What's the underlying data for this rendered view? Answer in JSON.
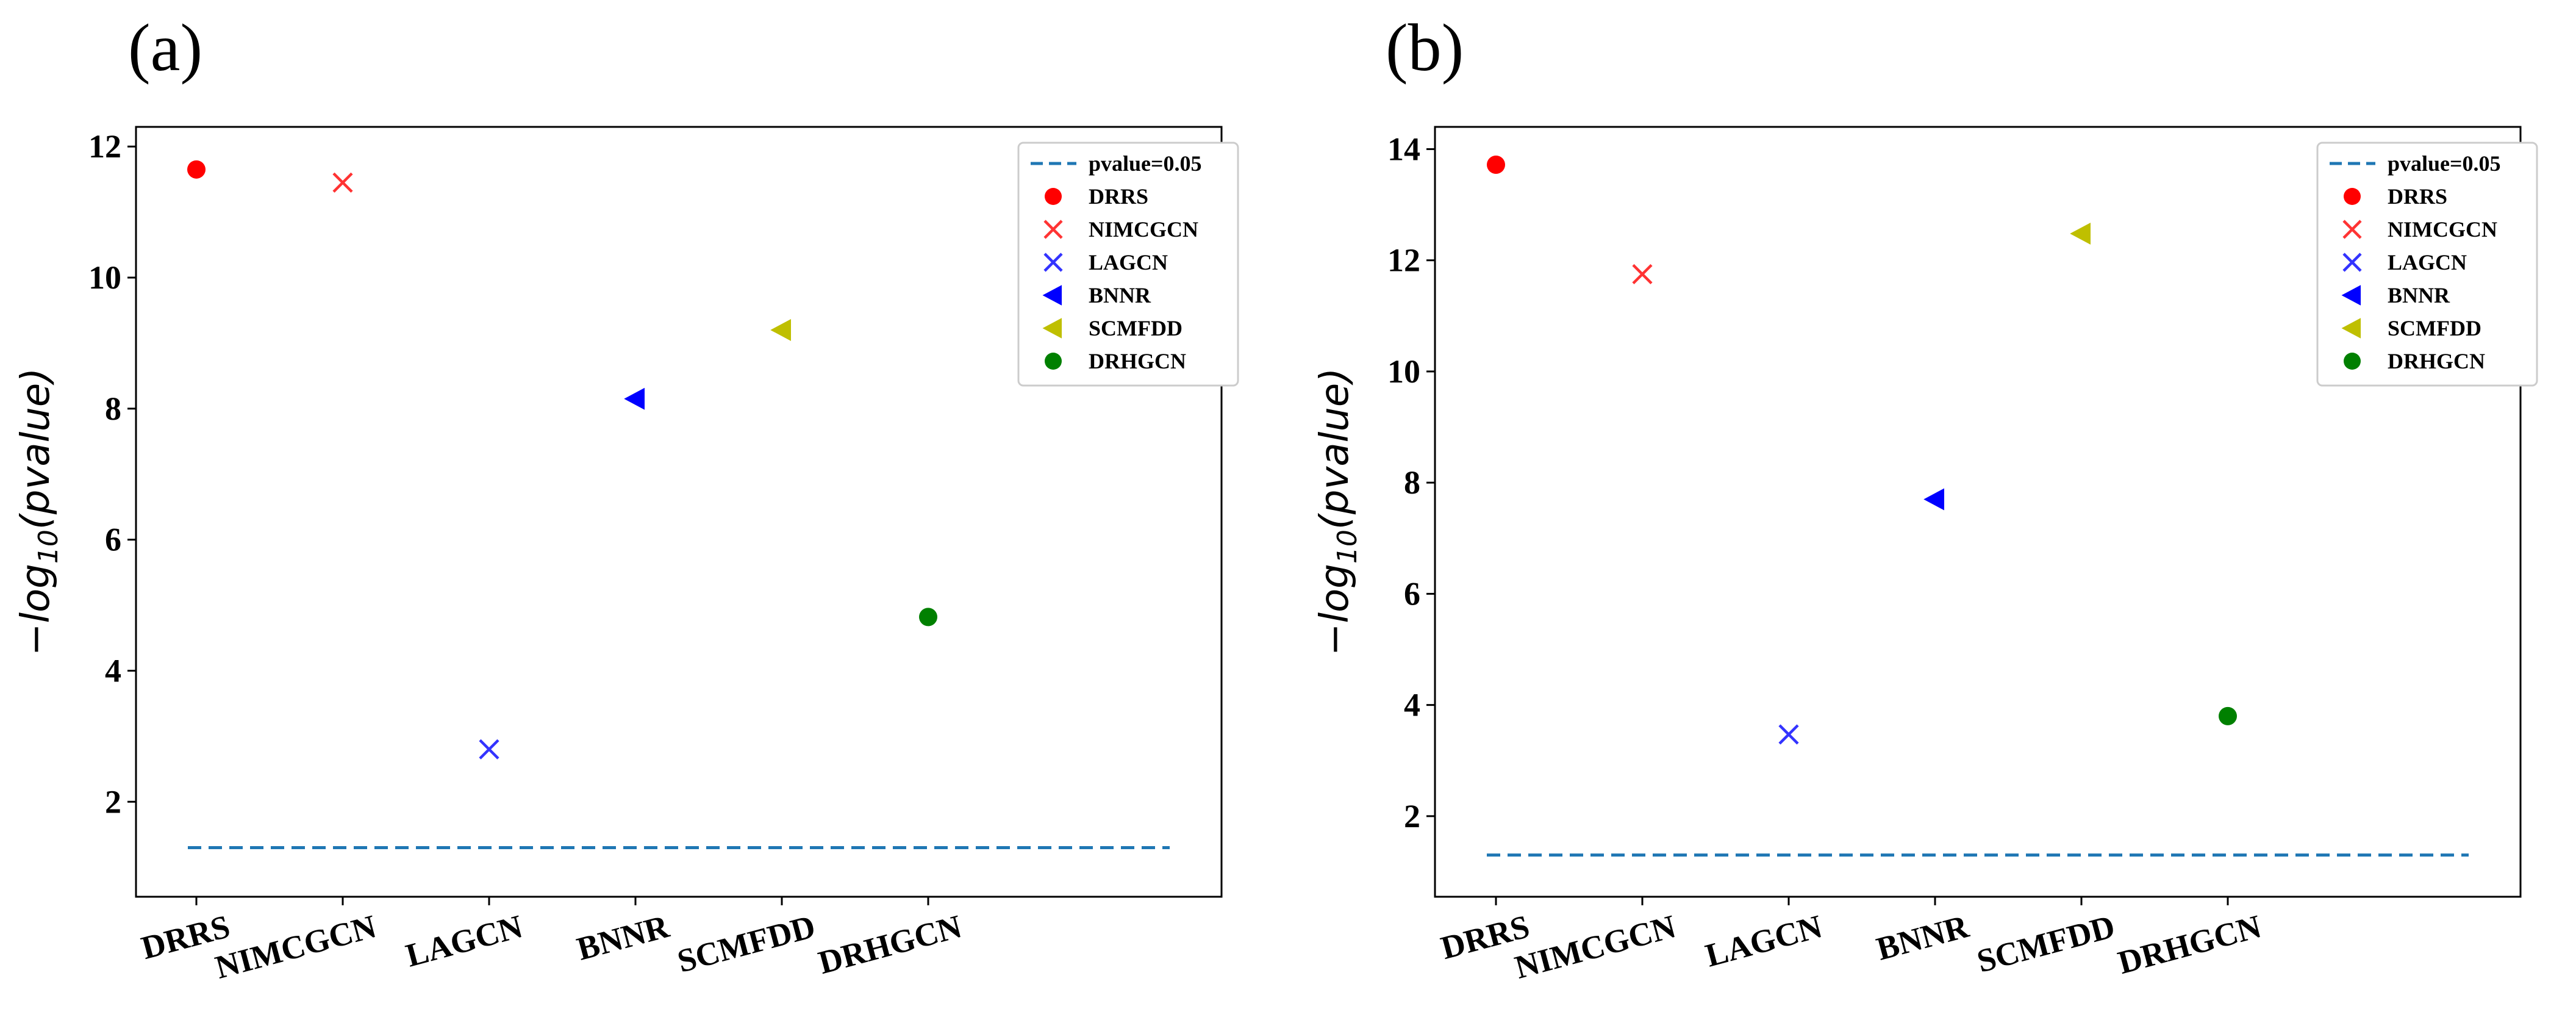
{
  "chart_data": [
    {
      "type": "scatter",
      "panel_label": "(a)",
      "ylabel_main": "−log",
      "ylabel_sub": "10",
      "ylabel_tail": "(pvalue)",
      "categories": [
        "DRRS",
        "NIMCGCN",
        "LAGCN",
        "BNNR",
        "SCMFDD",
        "DRHGCN"
      ],
      "values": [
        11.65,
        11.45,
        2.8,
        8.15,
        9.2,
        4.82
      ],
      "yticks": [
        2,
        4,
        6,
        8,
        10,
        12
      ],
      "ylim": [
        0.55,
        12.3
      ],
      "threshold": {
        "label": "pvalue=0.05",
        "value": 1.3
      },
      "legend_position": "top-right"
    },
    {
      "type": "scatter",
      "panel_label": "(b)",
      "ylabel_main": "−log",
      "ylabel_sub": "10",
      "ylabel_tail": "(pvalue)",
      "categories": [
        "DRRS",
        "NIMCGCN",
        "LAGCN",
        "BNNR",
        "SCMFDD",
        "DRHGCN"
      ],
      "values": [
        13.72,
        11.75,
        3.47,
        7.7,
        12.48,
        3.8
      ],
      "yticks": [
        2,
        4,
        6,
        8,
        10,
        12,
        14
      ],
      "ylim": [
        0.55,
        14.4
      ],
      "threshold": {
        "label": "pvalue=0.05",
        "value": 1.3
      },
      "legend_position": "top-right"
    }
  ],
  "markers": [
    {
      "name": "DRRS",
      "shape": "circle",
      "color": "#ff0000"
    },
    {
      "name": "NIMCGCN",
      "shape": "x",
      "color": "#ff3333"
    },
    {
      "name": "LAGCN",
      "shape": "x",
      "color": "#3333ff"
    },
    {
      "name": "BNNR",
      "shape": "triangle-left",
      "color": "#0000ff"
    },
    {
      "name": "SCMFDD",
      "shape": "triangle-left",
      "color": "#bfbf00"
    },
    {
      "name": "DRHGCN",
      "shape": "circle",
      "color": "#008000"
    }
  ],
  "threshold_color": "#1f77b4"
}
